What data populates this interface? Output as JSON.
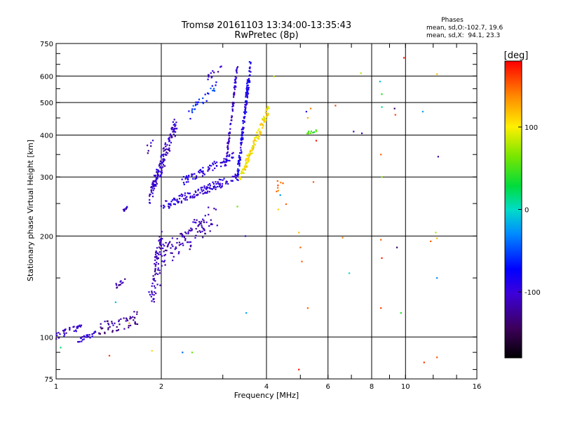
{
  "chart_data": {
    "type": "scatter",
    "title": "Tromsø 20161103 13:34:00-13:35:43",
    "subtitle": "RwPretec (8p)",
    "xlabel": "Frequency [MHz]",
    "ylabel": "Stationary phase Virtual Height [km]",
    "x_scale": "log",
    "y_scale": "log",
    "xlim": [
      1,
      16
    ],
    "ylim": [
      75,
      750
    ],
    "xticks": [
      {
        "v": 1,
        "label": "1"
      },
      {
        "v": 2,
        "label": "2"
      },
      {
        "v": 4,
        "label": "4"
      },
      {
        "v": 6,
        "label": "6"
      },
      {
        "v": 8,
        "label": "8"
      },
      {
        "v": 10,
        "label": "10"
      },
      {
        "v": 16,
        "label": "16"
      }
    ],
    "yticks": [
      {
        "v": 75,
        "label": "75"
      },
      {
        "v": 100,
        "label": "100"
      },
      {
        "v": 200,
        "label": "200"
      },
      {
        "v": 300,
        "label": "300"
      },
      {
        "v": 400,
        "label": "400"
      },
      {
        "v": 500,
        "label": "500"
      },
      {
        "v": 600,
        "label": "600"
      },
      {
        "v": 750,
        "label": "750"
      }
    ],
    "grid": true,
    "info": {
      "heading": "Phases",
      "line1": "mean, sd,O:-102.7, 19.6",
      "line2": "mean, sd,X:  94.1, 23.3"
    },
    "colorbar": {
      "label": "[deg]",
      "range": [
        -180,
        180
      ],
      "ticks": [
        {
          "v": 100,
          "label": "100"
        },
        {
          "v": 0,
          "label": "0"
        },
        {
          "v": -100,
          "label": "-100"
        }
      ],
      "colormap": "rainbow"
    },
    "traces": [
      {
        "seed": 1,
        "n": 32,
        "x0": 1.0,
        "x1": 1.18,
        "h0": 100,
        "h1": 108,
        "spread": 0.025,
        "phase": -105
      },
      {
        "seed": 2,
        "n": 26,
        "x0": 1.15,
        "x1": 1.3,
        "h0": 98,
        "h1": 103,
        "spread": 0.02,
        "phase": -100
      },
      {
        "seed": 3,
        "n": 55,
        "x0": 1.32,
        "x1": 1.72,
        "h0": 106,
        "h1": 114,
        "spread": 0.05,
        "phase": -125
      },
      {
        "seed": 4,
        "n": 12,
        "x0": 1.48,
        "x1": 1.58,
        "h0": 142,
        "h1": 148,
        "spread": 0.02,
        "phase": -115
      },
      {
        "seed": 5,
        "n": 10,
        "x0": 1.55,
        "x1": 1.6,
        "h0": 237,
        "h1": 243,
        "spread": 0.01,
        "phase": -110
      },
      {
        "seed": 6,
        "n": 22,
        "x0": 1.85,
        "x1": 1.97,
        "h0": 130,
        "h1": 148,
        "spread": 0.06,
        "phase": -105
      },
      {
        "seed": 7,
        "n": 45,
        "x0": 1.9,
        "x1": 2.0,
        "h0": 150,
        "h1": 200,
        "spread": 0.05,
        "phase": -110
      },
      {
        "seed": 8,
        "n": 120,
        "x0": 1.95,
        "x1": 2.85,
        "h0": 170,
        "h1": 230,
        "spread": 0.09,
        "phase": -115
      },
      {
        "seed": 9,
        "n": 150,
        "x0": 1.85,
        "x1": 2.2,
        "h0": 260,
        "h1": 430,
        "spread": 0.05,
        "phase": -105
      },
      {
        "seed": 10,
        "n": 130,
        "x0": 2.0,
        "x1": 3.3,
        "h0": 245,
        "h1": 300,
        "spread": 0.03,
        "phase": -100
      },
      {
        "seed": 11,
        "n": 70,
        "x0": 2.3,
        "x1": 3.25,
        "h0": 290,
        "h1": 350,
        "spread": 0.03,
        "phase": -95
      },
      {
        "seed": 12,
        "n": 90,
        "x0": 3.05,
        "x1": 3.3,
        "h0": 320,
        "h1": 640,
        "spread": 0.02,
        "phase": -105
      },
      {
        "seed": 13,
        "n": 150,
        "x0": 3.3,
        "x1": 3.6,
        "h0": 300,
        "h1": 650,
        "spread": 0.03,
        "phase": -85
      },
      {
        "seed": 14,
        "n": 130,
        "x0": 3.35,
        "x1": 4.05,
        "h0": 295,
        "h1": 480,
        "spread": 0.03,
        "phase": 105
      },
      {
        "seed": 15,
        "n": 30,
        "x0": 2.4,
        "x1": 2.9,
        "h0": 460,
        "h1": 560,
        "spread": 0.04,
        "phase": -60
      },
      {
        "seed": 16,
        "n": 12,
        "x0": 2.7,
        "x1": 3.0,
        "h0": 590,
        "h1": 640,
        "spread": 0.02,
        "phase": -110
      },
      {
        "seed": 17,
        "n": 12,
        "x0": 5.2,
        "x1": 5.6,
        "h0": 405,
        "h1": 412,
        "spread": 0.01,
        "phase": 50
      },
      {
        "seed": 18,
        "n": 6,
        "x0": 4.25,
        "x1": 4.5,
        "h0": 272,
        "h1": 290,
        "spread": 0.03,
        "phase": 140
      },
      {
        "seed": 19,
        "n": 6,
        "x0": 1.8,
        "x1": 1.95,
        "h0": 355,
        "h1": 395,
        "spread": 0.03,
        "phase": -115
      }
    ],
    "points": [
      {
        "x": 1.03,
        "y": 93,
        "p": 20
      },
      {
        "x": 1.42,
        "y": 88,
        "p": 160
      },
      {
        "x": 1.88,
        "y": 91,
        "p": 110
      },
      {
        "x": 2.3,
        "y": 90,
        "p": -40
      },
      {
        "x": 2.45,
        "y": 90,
        "p": 60
      },
      {
        "x": 1.48,
        "y": 127,
        "p": -10
      },
      {
        "x": 1.62,
        "y": 110,
        "p": 130
      },
      {
        "x": 3.3,
        "y": 245,
        "p": 60
      },
      {
        "x": 3.48,
        "y": 200,
        "p": -90
      },
      {
        "x": 3.5,
        "y": 118,
        "p": -20
      },
      {
        "x": 4.3,
        "y": 292,
        "p": 150
      },
      {
        "x": 4.38,
        "y": 265,
        "p": -25
      },
      {
        "x": 4.32,
        "y": 240,
        "p": 110
      },
      {
        "x": 4.55,
        "y": 249,
        "p": 150
      },
      {
        "x": 4.95,
        "y": 205,
        "p": 120
      },
      {
        "x": 5.0,
        "y": 185,
        "p": 150
      },
      {
        "x": 5.05,
        "y": 168,
        "p": 150
      },
      {
        "x": 5.25,
        "y": 450,
        "p": 125
      },
      {
        "x": 5.35,
        "y": 480,
        "p": 140
      },
      {
        "x": 5.2,
        "y": 470,
        "p": -95
      },
      {
        "x": 5.55,
        "y": 385,
        "p": 175
      },
      {
        "x": 5.45,
        "y": 290,
        "p": 155
      },
      {
        "x": 4.95,
        "y": 80,
        "p": 175
      },
      {
        "x": 5.25,
        "y": 122,
        "p": 150
      },
      {
        "x": 4.2,
        "y": 598,
        "p": 80
      },
      {
        "x": 6.6,
        "y": 198,
        "p": 140
      },
      {
        "x": 6.3,
        "y": 490,
        "p": 160
      },
      {
        "x": 7.1,
        "y": 410,
        "p": -120
      },
      {
        "x": 7.5,
        "y": 405,
        "p": -115
      },
      {
        "x": 7.45,
        "y": 612,
        "p": 80
      },
      {
        "x": 8.45,
        "y": 578,
        "p": -10
      },
      {
        "x": 8.55,
        "y": 530,
        "p": 40
      },
      {
        "x": 8.55,
        "y": 485,
        "p": 10
      },
      {
        "x": 8.5,
        "y": 350,
        "p": 150
      },
      {
        "x": 8.55,
        "y": 300,
        "p": 70
      },
      {
        "x": 8.5,
        "y": 195,
        "p": 150
      },
      {
        "x": 8.55,
        "y": 172,
        "p": 170
      },
      {
        "x": 8.5,
        "y": 122,
        "p": 160
      },
      {
        "x": 9.3,
        "y": 480,
        "p": -140
      },
      {
        "x": 9.35,
        "y": 460,
        "p": 160
      },
      {
        "x": 9.45,
        "y": 185,
        "p": -140
      },
      {
        "x": 9.7,
        "y": 118,
        "p": 40
      },
      {
        "x": 9.9,
        "y": 680,
        "p": 175
      },
      {
        "x": 11.2,
        "y": 470,
        "p": -20
      },
      {
        "x": 12.2,
        "y": 205,
        "p": 80
      },
      {
        "x": 12.3,
        "y": 197,
        "p": 120
      },
      {
        "x": 11.8,
        "y": 193,
        "p": 150
      },
      {
        "x": 12.3,
        "y": 150,
        "p": -30
      },
      {
        "x": 12.4,
        "y": 345,
        "p": -120
      },
      {
        "x": 12.3,
        "y": 608,
        "p": 120
      },
      {
        "x": 11.3,
        "y": 84,
        "p": 165
      },
      {
        "x": 12.3,
        "y": 87,
        "p": 155
      },
      {
        "x": 6.9,
        "y": 155,
        "p": 0
      }
    ]
  }
}
